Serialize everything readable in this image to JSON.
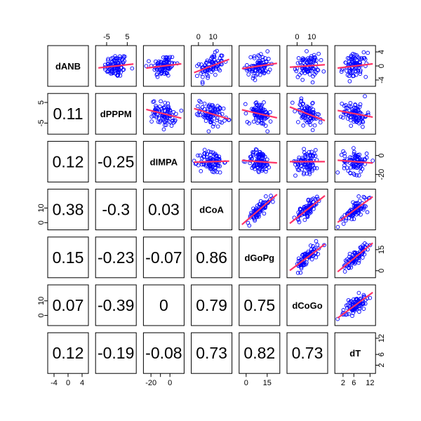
{
  "chart_data": {
    "type": "scatter",
    "title": "",
    "variables": [
      "dANB",
      "dPPPM",
      "dIMPA",
      "dCoA",
      "dGoPg",
      "dCoGo",
      "dT"
    ],
    "correlations": [
      {
        "row": "dPPPM",
        "col": "dANB",
        "label": "0.11"
      },
      {
        "row": "dIMPA",
        "col": "dANB",
        "label": "0.12"
      },
      {
        "row": "dIMPA",
        "col": "dPPPM",
        "label": "-0.25"
      },
      {
        "row": "dCoA",
        "col": "dANB",
        "label": "0.38"
      },
      {
        "row": "dCoA",
        "col": "dPPPM",
        "label": "-0.3"
      },
      {
        "row": "dCoA",
        "col": "dIMPA",
        "label": "0.03"
      },
      {
        "row": "dGoPg",
        "col": "dANB",
        "label": "0.15"
      },
      {
        "row": "dGoPg",
        "col": "dPPPM",
        "label": "-0.23"
      },
      {
        "row": "dGoPg",
        "col": "dIMPA",
        "label": "-0.07"
      },
      {
        "row": "dGoPg",
        "col": "dCoA",
        "label": "0.86"
      },
      {
        "row": "dCoGo",
        "col": "dANB",
        "label": "0.07"
      },
      {
        "row": "dCoGo",
        "col": "dPPPM",
        "label": "-0.39"
      },
      {
        "row": "dCoGo",
        "col": "dIMPA",
        "label": "0"
      },
      {
        "row": "dCoGo",
        "col": "dCoA",
        "label": "0.79"
      },
      {
        "row": "dCoGo",
        "col": "dGoPg",
        "label": "0.75"
      },
      {
        "row": "dT",
        "col": "dANB",
        "label": "0.12"
      },
      {
        "row": "dT",
        "col": "dPPPM",
        "label": "-0.19"
      },
      {
        "row": "dT",
        "col": "dIMPA",
        "label": "-0.08"
      },
      {
        "row": "dT",
        "col": "dCoA",
        "label": "0.73"
      },
      {
        "row": "dT",
        "col": "dGoPg",
        "label": "0.82"
      },
      {
        "row": "dT",
        "col": "dCoGo",
        "label": "0.73"
      }
    ],
    "axis_ranges": {
      "dANB": [
        -5,
        5
      ],
      "dPPPM": [
        -9,
        8
      ],
      "dIMPA": [
        -25,
        12
      ],
      "dCoA": [
        -3,
        21
      ],
      "dGoPg": [
        -3,
        22
      ],
      "dCoGo": [
        -5,
        19
      ],
      "dT": [
        0,
        13
      ]
    },
    "ticks": {
      "top": [
        {
          "var": "dPPPM",
          "values": [
            -5,
            5
          ],
          "labels": [
            "-5",
            "5"
          ]
        },
        {
          "var": "dCoA",
          "values": [
            0,
            10
          ],
          "labels": [
            "0",
            "10"
          ]
        },
        {
          "var": "dCoGo",
          "values": [
            0,
            10
          ],
          "labels": [
            "0",
            "10"
          ]
        }
      ],
      "bottom": [
        {
          "var": "dANB",
          "values": [
            -4,
            0,
            4
          ],
          "labels": [
            "-4",
            "0",
            "4"
          ]
        },
        {
          "var": "dIMPA",
          "values": [
            -20,
            -10,
            0
          ],
          "labels": [
            "-20",
            "",
            "0"
          ]
        },
        {
          "var": "dGoPg",
          "values": [
            0,
            15
          ],
          "labels": [
            "0",
            "15"
          ]
        },
        {
          "var": "dT",
          "values": [
            2,
            6,
            12
          ],
          "labels": [
            "2",
            "6",
            "12"
          ]
        }
      ],
      "left": [
        {
          "var": "dPPPM",
          "values": [
            -5,
            5
          ],
          "labels": [
            "-5",
            "5"
          ]
        },
        {
          "var": "dCoA",
          "values": [
            0,
            10
          ],
          "labels": [
            "0",
            "10"
          ]
        },
        {
          "var": "dCoGo",
          "values": [
            0,
            10
          ],
          "labels": [
            "0",
            "10"
          ]
        }
      ],
      "right": [
        {
          "var": "dANB",
          "values": [
            -4,
            0,
            4
          ],
          "labels": [
            "-4",
            "0",
            "4"
          ]
        },
        {
          "var": "dIMPA",
          "values": [
            -20,
            0
          ],
          "labels": [
            "-20",
            "0"
          ]
        },
        {
          "var": "dGoPg",
          "values": [
            0,
            15
          ],
          "labels": [
            "0",
            "15"
          ]
        },
        {
          "var": "dT",
          "values": [
            2,
            6,
            12
          ],
          "labels": [
            "2",
            "6",
            "12"
          ]
        }
      ]
    },
    "points_per_panel": 85,
    "colors": {
      "points": "#0000ff",
      "fit": "#ff3366"
    }
  }
}
